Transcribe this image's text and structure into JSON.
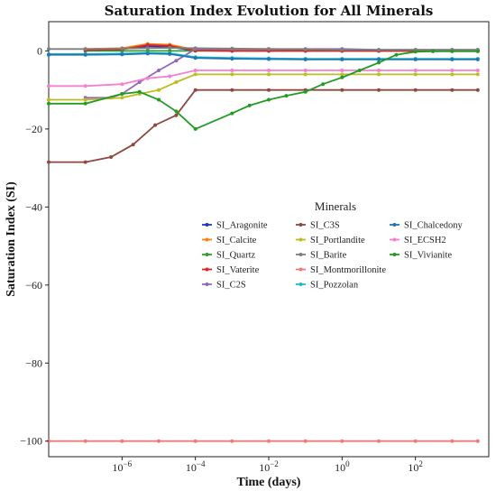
{
  "chart_data": {
    "type": "line",
    "title": "Saturation Index Evolution for All Minerals",
    "xlabel": "Time (days)",
    "ylabel": "Saturation Index (SI)",
    "xscale": "log",
    "xlim": [
      1e-08,
      10000
    ],
    "ylim": [
      -104,
      7.5
    ],
    "x_ticks": [
      {
        "value": 1e-06,
        "base": "10",
        "exp": "−6"
      },
      {
        "value": 0.0001,
        "base": "10",
        "exp": "−4"
      },
      {
        "value": 0.01,
        "base": "10",
        "exp": "−2"
      },
      {
        "value": 1,
        "base": "10",
        "exp": "0"
      },
      {
        "value": 100,
        "base": "10",
        "exp": "2"
      }
    ],
    "y_ticks": [
      {
        "value": 0,
        "label": "0"
      },
      {
        "value": -20,
        "label": "−20"
      },
      {
        "value": -40,
        "label": "−40"
      },
      {
        "value": -60,
        "label": "−60"
      },
      {
        "value": -80,
        "label": "−80"
      },
      {
        "value": -100,
        "label": "−100"
      }
    ],
    "grid": false,
    "legend": {
      "title": "Minerals",
      "position": "center-right",
      "columns": 3
    },
    "series": [
      {
        "name": "SI_Aragonite",
        "color": "#1f35c4",
        "x": [
          1e-07,
          1e-06,
          5e-06,
          2e-05,
          0.0001,
          0.001,
          0.01,
          0.1,
          1,
          10,
          100,
          1000,
          5000
        ],
        "y": [
          0.3,
          0.5,
          1.2,
          1.0,
          0.1,
          0,
          0,
          0,
          0,
          0,
          0,
          0,
          0
        ]
      },
      {
        "name": "SI_Calcite",
        "color": "#ff7f0e",
        "x": [
          1e-07,
          1e-06,
          5e-06,
          2e-05,
          0.0001,
          0.001,
          0.01,
          0.1,
          1,
          10,
          100,
          1000,
          5000
        ],
        "y": [
          0.5,
          0.7,
          1.8,
          1.6,
          0.3,
          0.1,
          0.1,
          0.1,
          0.1,
          0.1,
          0.1,
          0.1,
          0.1
        ]
      },
      {
        "name": "SI_Quartz",
        "color": "#2ca02c",
        "x": [
          1e-07,
          1e-06,
          5e-06,
          2e-05,
          0.0001,
          0.001,
          0.01,
          0.1,
          1,
          10,
          100,
          1000,
          5000
        ],
        "y": [
          0,
          0,
          0,
          0,
          0,
          0,
          0,
          0,
          0,
          0,
          0,
          0,
          0
        ]
      },
      {
        "name": "SI_Vaterite",
        "color": "#d62728",
        "x": [
          1e-07,
          1e-06,
          5e-06,
          2e-05,
          0.0001,
          0.001,
          0.01,
          0.1,
          1,
          10,
          100,
          1000,
          5000
        ],
        "y": [
          0.2,
          0.4,
          1.5,
          1.3,
          0.1,
          0,
          0,
          0,
          0,
          0,
          0,
          0,
          0
        ]
      },
      {
        "name": "SI_C2S",
        "color": "#9467bd",
        "x": [
          1e-07,
          5e-07,
          1e-06,
          3e-06,
          1e-05,
          3e-05,
          0.0001,
          0.001,
          0.01,
          0.1,
          1,
          10,
          100,
          1000,
          5000
        ],
        "y": [
          -12,
          -12,
          -11,
          -8,
          -5,
          -2.5,
          0.5,
          0.5,
          0.5,
          0.5,
          0.5,
          0.3,
          0.3,
          0.3,
          0.3
        ]
      },
      {
        "name": "SI_C3S",
        "color": "#8c4a3f",
        "x": [
          1e-08,
          1e-07,
          5e-07,
          2e-06,
          8e-06,
          3e-05,
          0.0001,
          0.001,
          0.01,
          0.1,
          1,
          10,
          100,
          1000,
          5000
        ],
        "y": [
          -28.5,
          -28.5,
          -27.2,
          -24,
          -19,
          -16.5,
          -10,
          -10,
          -10,
          -10,
          -10,
          -10,
          -10,
          -10,
          -10
        ]
      },
      {
        "name": "SI_Portlandite",
        "color": "#bcbd22",
        "x": [
          1e-08,
          1e-07,
          1e-06,
          3e-06,
          1e-05,
          3e-05,
          0.0001,
          0.001,
          0.01,
          0.1,
          1,
          10,
          100,
          1000,
          5000
        ],
        "y": [
          -12.5,
          -12.5,
          -12,
          -11,
          -10,
          -8,
          -6,
          -6,
          -6,
          -6,
          -6,
          -6,
          -6,
          -6,
          -6
        ]
      },
      {
        "name": "SI_Barite",
        "color": "#7f7f7f",
        "x": [
          1e-08,
          1e-07,
          1e-06,
          5e-06,
          2e-05,
          0.0001,
          0.001,
          0.01,
          0.1,
          1,
          10,
          100,
          1000,
          5000
        ],
        "y": [
          0.5,
          0.5,
          0.6,
          0.7,
          0.8,
          0.7,
          0.6,
          0.5,
          0.4,
          0.3,
          0.3,
          0.3,
          0.3,
          0.3
        ]
      },
      {
        "name": "SI_Montmorillonite",
        "color": "#f07a7a",
        "x": [
          1e-08,
          1e-07,
          1e-06,
          1e-05,
          0.0001,
          0.001,
          0.01,
          0.1,
          1,
          10,
          100,
          1000,
          5000
        ],
        "y": [
          -100,
          -100,
          -100,
          -100,
          -100,
          -100,
          -100,
          -100,
          -100,
          -100,
          -100,
          -100,
          -100
        ]
      },
      {
        "name": "SI_Pozzolan",
        "color": "#17becf",
        "x": [
          1e-08,
          1e-07,
          1e-06,
          5e-06,
          2e-05,
          0.0001,
          0.001,
          0.01,
          0.1,
          1,
          10,
          100,
          1000,
          5000
        ],
        "y": [
          -0.8,
          -0.8,
          -0.7,
          -0.5,
          -0.6,
          -1.6,
          -1.8,
          -1.9,
          -2,
          -2,
          -2,
          -2,
          -2,
          -2
        ]
      },
      {
        "name": "SI_Chalcedony",
        "color": "#1f77b4",
        "x": [
          1e-08,
          1e-07,
          1e-06,
          5e-06,
          2e-05,
          0.0001,
          0.001,
          0.01,
          0.1,
          1,
          10,
          100,
          1000,
          5000
        ],
        "y": [
          -1,
          -1,
          -0.9,
          -0.7,
          -0.8,
          -1.8,
          -2,
          -2.1,
          -2.2,
          -2.2,
          -2.2,
          -2.2,
          -2.2,
          -2.2
        ]
      },
      {
        "name": "SI_ECSH2",
        "color": "#f57fd2",
        "x": [
          1e-08,
          1e-07,
          1e-06,
          5e-06,
          2e-05,
          0.0001,
          0.001,
          0.01,
          0.1,
          1,
          10,
          100,
          1000,
          5000
        ],
        "y": [
          -9,
          -9,
          -8.5,
          -7,
          -6.5,
          -5,
          -5,
          -5,
          -5,
          -5,
          -5,
          -5,
          -5,
          -5
        ]
      },
      {
        "name": "SI_Vivianite",
        "color": "#239b23",
        "x": [
          1e-08,
          1e-07,
          1e-06,
          3e-06,
          1e-05,
          3e-05,
          0.0001,
          0.001,
          0.003,
          0.01,
          0.03,
          0.1,
          0.3,
          1,
          3,
          10,
          30,
          100,
          300,
          1000,
          5000
        ],
        "y": [
          -13.5,
          -13.5,
          -11,
          -10.5,
          -12.5,
          -15.5,
          -20,
          -16,
          -14,
          -12.5,
          -11.5,
          -10.5,
          -8.5,
          -6.8,
          -5,
          -3,
          -1,
          -0.2,
          -0.1,
          -0.1,
          -0.1
        ]
      }
    ]
  }
}
